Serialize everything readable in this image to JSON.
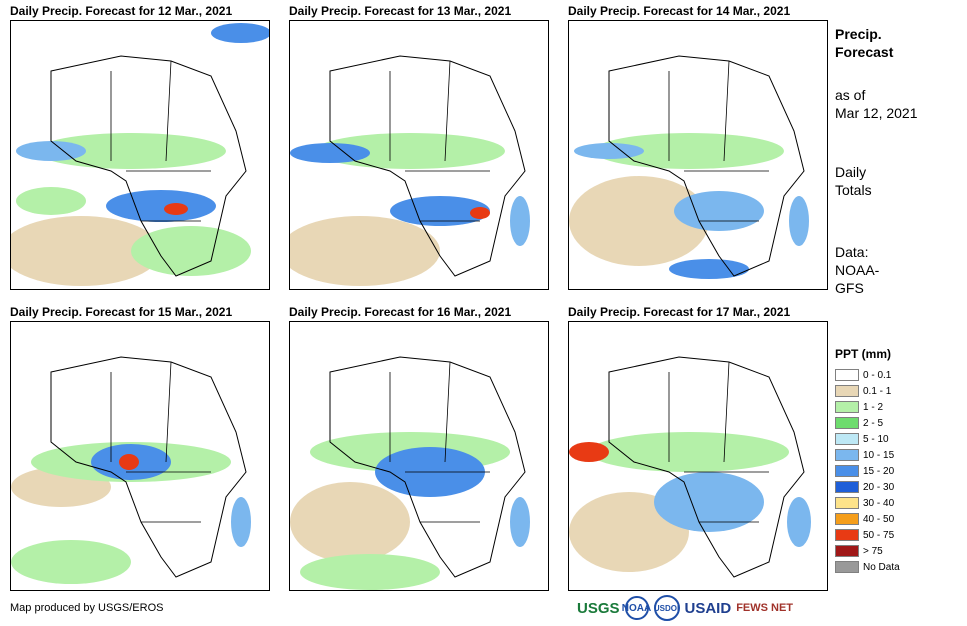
{
  "panels": [
    {
      "title": "Daily Precip. Forecast for 12 Mar., 2021"
    },
    {
      "title": "Daily Precip. Forecast for 13 Mar., 2021"
    },
    {
      "title": "Daily Precip. Forecast for 14 Mar., 2021"
    },
    {
      "title": "Daily Precip. Forecast for 15 Mar., 2021"
    },
    {
      "title": "Daily Precip. Forecast for 16 Mar., 2021"
    },
    {
      "title": "Daily Precip. Forecast for 17 Mar., 2021"
    }
  ],
  "sidebar": {
    "title_line1": "Precip.",
    "title_line2": "Forecast",
    "asof_line1": "as of",
    "asof_line2": "Mar 12, 2021",
    "totals_line1": "Daily",
    "totals_line2": "Totals",
    "data_line1": "Data:",
    "data_line2": "NOAA-",
    "data_line3": "GFS"
  },
  "legend": {
    "title": "PPT (mm)",
    "items": [
      {
        "label": "0 - 0.1",
        "color": "#ffffff"
      },
      {
        "label": "0.1 - 1",
        "color": "#e8d7b6"
      },
      {
        "label": "1 - 2",
        "color": "#b4f0a8"
      },
      {
        "label": "2 - 5",
        "color": "#6edc6e"
      },
      {
        "label": "5 - 10",
        "color": "#bde8f5"
      },
      {
        "label": "10 - 15",
        "color": "#7bb7ee"
      },
      {
        "label": "15 - 20",
        "color": "#4a8fe8"
      },
      {
        "label": "20 - 30",
        "color": "#1f5fd8"
      },
      {
        "label": "30 - 40",
        "color": "#fde38a"
      },
      {
        "label": "40 - 50",
        "color": "#f59e1b"
      },
      {
        "label": "50 - 75",
        "color": "#e83a14"
      },
      {
        "label": "> 75",
        "color": "#a01818"
      },
      {
        "label": "No Data",
        "color": "#999999"
      }
    ]
  },
  "footer": {
    "credit": "Map produced by USGS/EROS",
    "logos": [
      "USGS",
      "NOAA",
      "USDOI",
      "USAID",
      "FEWS NET"
    ]
  }
}
